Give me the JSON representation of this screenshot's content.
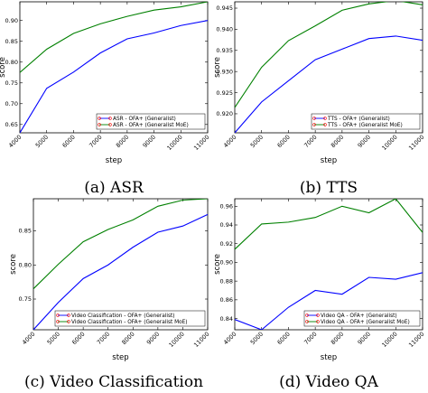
{
  "chart_data": [
    {
      "type": "line",
      "caption": "(a) ASR",
      "xlabel": "step",
      "ylabel": "score",
      "x": [
        4000,
        5000,
        6000,
        7000,
        8000,
        9000,
        10000,
        11000
      ],
      "xticks": [
        "4000",
        "5000",
        "6000",
        "7000",
        "8000",
        "9000",
        "10000",
        "11000"
      ],
      "ylim": [
        0.63,
        0.945
      ],
      "yticks": [
        0.65,
        0.7,
        0.75,
        0.8,
        0.85,
        0.9
      ],
      "yticklabels": [
        "0.65",
        "0.70",
        "0.75",
        "0.80",
        "0.85",
        "0.90"
      ],
      "legend_position": "lower-right",
      "series": [
        {
          "name": "ASR - OFA+ (Generalist)",
          "color": "#0000ff",
          "values": [
            0.63,
            0.737,
            0.776,
            0.822,
            0.856,
            0.87,
            0.888,
            0.9
          ]
        },
        {
          "name": "ASR - OFA+ (Generalist MoE)",
          "color": "#008000",
          "values": [
            0.775,
            0.831,
            0.869,
            0.892,
            0.91,
            0.925,
            0.933,
            0.945
          ]
        }
      ]
    },
    {
      "type": "line",
      "caption": "(b) TTS",
      "xlabel": "step",
      "ylabel": "score",
      "x": [
        4000,
        5000,
        6000,
        7000,
        8000,
        9000,
        10000,
        11000
      ],
      "xticks": [
        "4000",
        "5000",
        "6000",
        "7000",
        "8000",
        "9000",
        "10000",
        "11000"
      ],
      "ylim": [
        0.9155,
        0.9465
      ],
      "yticks": [
        0.92,
        0.925,
        0.93,
        0.935,
        0.94,
        0.945
      ],
      "yticklabels": [
        "0.920",
        "0.925",
        "0.930",
        "0.935",
        "0.940",
        "0.945"
      ],
      "legend_position": "lower-right",
      "series": [
        {
          "name": "TTS - OFA+ (Generalist)",
          "color": "#0000ff",
          "values": [
            0.9155,
            0.9228,
            0.9278,
            0.9328,
            0.9353,
            0.9378,
            0.9384,
            0.9374
          ]
        },
        {
          "name": "TTS - OFA+ (Generalist MoE)",
          "color": "#008000",
          "values": [
            0.9215,
            0.931,
            0.9373,
            0.9408,
            0.9445,
            0.946,
            0.9468,
            0.9458
          ]
        }
      ]
    },
    {
      "type": "line",
      "caption": "(c) Video Classification",
      "xlabel": "step",
      "ylabel": "score",
      "x": [
        4000,
        5000,
        6000,
        7000,
        8000,
        9000,
        10000,
        11000
      ],
      "xticks": [
        "4000",
        "5000",
        "6000",
        "7000",
        "8000",
        "9000",
        "10000",
        "11000"
      ],
      "ylim": [
        0.705,
        0.897
      ],
      "yticks": [
        0.75,
        0.8,
        0.85
      ],
      "yticklabels": [
        "0.75",
        "0.80",
        "0.85"
      ],
      "legend_position": "lower-right",
      "series": [
        {
          "name": "Video Classification - OFA+ (Generalist)",
          "color": "#0000ff",
          "values": [
            0.705,
            0.745,
            0.78,
            0.8,
            0.826,
            0.848,
            0.857,
            0.874
          ]
        },
        {
          "name": "Video Classification - OFA+ (Generalist MoE)",
          "color": "#008000",
          "values": [
            0.765,
            0.801,
            0.834,
            0.852,
            0.866,
            0.886,
            0.895,
            0.897
          ]
        }
      ]
    },
    {
      "type": "line",
      "caption": "(d) Video QA",
      "xlabel": "step",
      "ylabel": "score",
      "x": [
        4000,
        5000,
        6000,
        7000,
        8000,
        9000,
        10000,
        11000
      ],
      "xticks": [
        "4000",
        "5000",
        "6000",
        "7000",
        "8000",
        "9000",
        "10000",
        "11000"
      ],
      "ylim": [
        0.828,
        0.968
      ],
      "yticks": [
        0.84,
        0.86,
        0.88,
        0.9,
        0.92,
        0.94,
        0.96
      ],
      "yticklabels": [
        "0.84",
        "0.86",
        "0.88",
        "0.90",
        "0.92",
        "0.94",
        "0.96"
      ],
      "legend_position": "lower-right",
      "series": [
        {
          "name": "Video QA - OFA+ (Generalist)",
          "color": "#0000ff",
          "values": [
            0.839,
            0.828,
            0.852,
            0.87,
            0.866,
            0.884,
            0.882,
            0.889
          ]
        },
        {
          "name": "Video QA - OFA+ (Generalist MoE)",
          "color": "#008000",
          "values": [
            0.914,
            0.941,
            0.943,
            0.948,
            0.96,
            0.953,
            0.968,
            0.932
          ]
        }
      ]
    }
  ]
}
